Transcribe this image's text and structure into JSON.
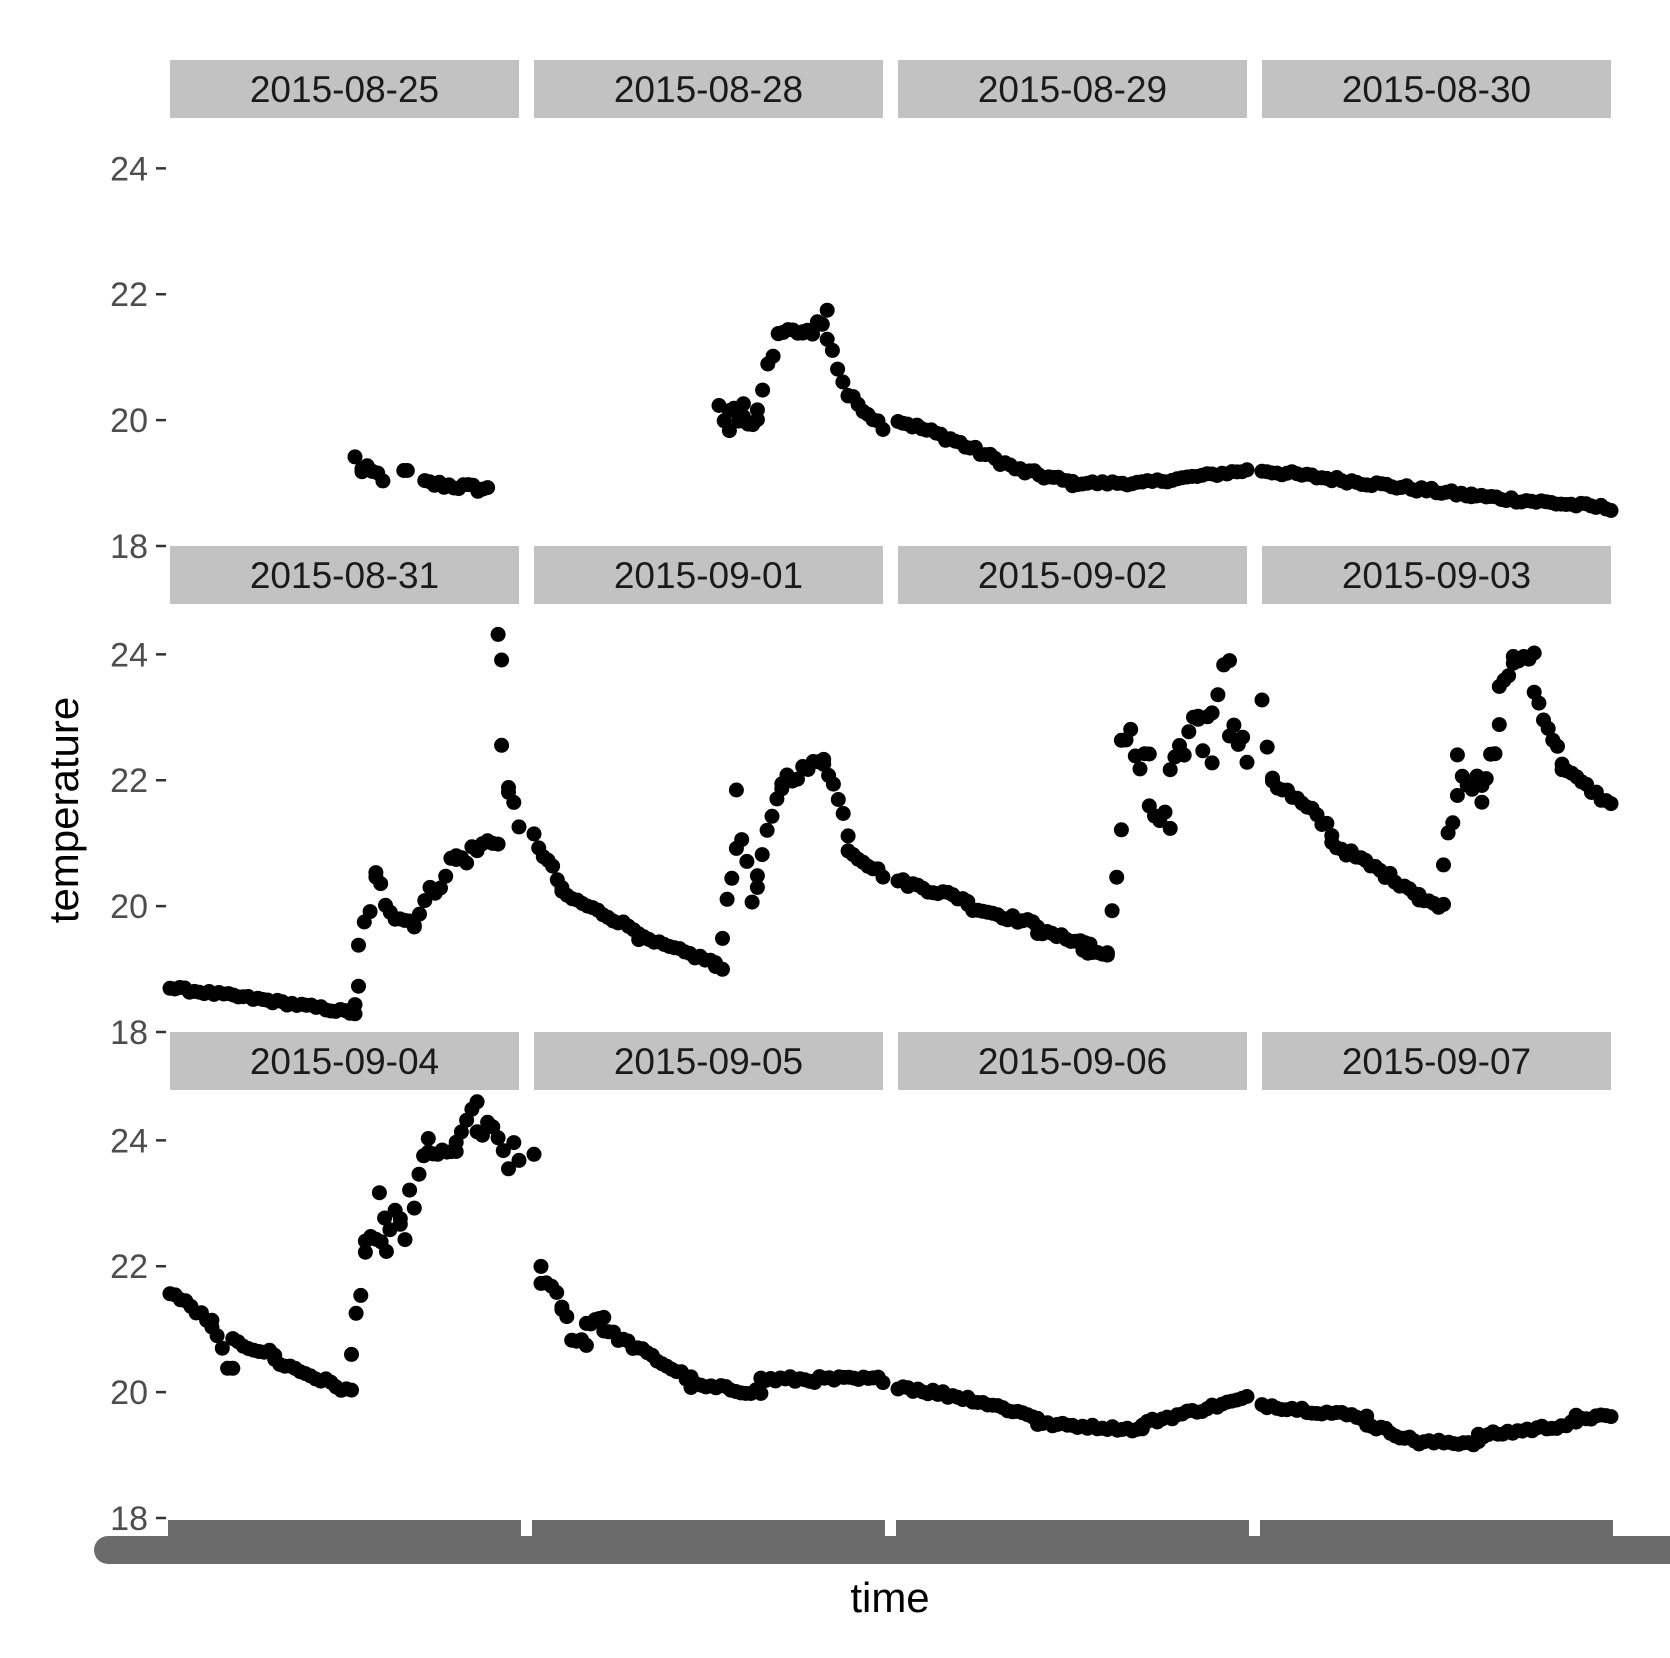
{
  "chart_data": {
    "type": "scatter",
    "facet_layout": {
      "ncol": 4,
      "nrow": 3
    },
    "xlabel": "time",
    "ylabel": "temperature",
    "ylim": [
      18,
      24.8
    ],
    "y_ticks": [
      18,
      20,
      22,
      24
    ],
    "grid": false,
    "colors": {
      "points": "#000000",
      "strip_background": "#c2c2c2",
      "strip_text": "#1a1a1a",
      "tick_label": "#4d4d4d",
      "axis_tick": "#333333",
      "overplotted_x_labels": "#6b6b6b"
    },
    "note_x_axis": "x tick labels are overplotted and unreadable (rendered as solid grey bars)",
    "panels": [
      {
        "label": "2015-08-25",
        "segments": [
          {
            "x0": 0.53,
            "x1": 0.55,
            "y0": 19.4,
            "y1": 19.2,
            "cluster": 0.05
          },
          {
            "x0": 0.55,
            "x1": 0.61,
            "y0": 19.2,
            "y1": 19.1,
            "cluster": 0.1
          },
          {
            "x0": 0.67,
            "x1": 0.68,
            "y0": 19.2,
            "y1": 19.2,
            "cluster": 0.0
          },
          {
            "x0": 0.73,
            "x1": 0.91,
            "y0": 19.0,
            "y1": 18.9,
            "cluster": 0.06
          }
        ]
      },
      {
        "label": "2015-08-28",
        "segments": [
          {
            "x0": 0.53,
            "x1": 0.56,
            "y0": 20.3,
            "y1": 19.9,
            "cluster": 0.25
          },
          {
            "x0": 0.56,
            "x1": 0.6,
            "y0": 19.9,
            "y1": 20.1,
            "cluster": 0.3
          },
          {
            "x0": 0.6,
            "x1": 0.64,
            "y0": 20.1,
            "y1": 20.1,
            "cluster": 0.25
          },
          {
            "x0": 0.64,
            "x1": 0.7,
            "y0": 20.2,
            "y1": 21.3,
            "cluster": 0.15
          },
          {
            "x0": 0.7,
            "x1": 0.77,
            "y0": 21.4,
            "y1": 21.4,
            "cluster": 0.05
          },
          {
            "x0": 0.77,
            "x1": 0.84,
            "y0": 21.3,
            "y1": 21.7,
            "cluster": 0.12
          },
          {
            "x0": 0.84,
            "x1": 0.9,
            "y0": 21.3,
            "y1": 20.4,
            "cluster": 0.08
          },
          {
            "x0": 0.9,
            "x1": 1.0,
            "y0": 20.4,
            "y1": 19.9,
            "cluster": 0.05
          }
        ]
      },
      {
        "label": "2015-08-29",
        "segments": [
          {
            "x0": 0.0,
            "x1": 0.15,
            "y0": 20.0,
            "y1": 19.7,
            "cluster": 0.05
          },
          {
            "x0": 0.15,
            "x1": 0.35,
            "y0": 19.7,
            "y1": 19.2,
            "cluster": 0.05
          },
          {
            "x0": 0.35,
            "x1": 0.5,
            "y0": 19.2,
            "y1": 19.0,
            "cluster": 0.05
          },
          {
            "x0": 0.5,
            "x1": 0.7,
            "y0": 19.0,
            "y1": 19.0,
            "cluster": 0.03
          },
          {
            "x0": 0.7,
            "x1": 1.0,
            "y0": 19.0,
            "y1": 19.2,
            "cluster": 0.03
          }
        ]
      },
      {
        "label": "2015-08-30",
        "segments": [
          {
            "x0": 0.0,
            "x1": 0.3,
            "y0": 19.2,
            "y1": 19.0,
            "cluster": 0.04
          },
          {
            "x0": 0.3,
            "x1": 0.6,
            "y0": 19.0,
            "y1": 18.8,
            "cluster": 0.04
          },
          {
            "x0": 0.6,
            "x1": 1.0,
            "y0": 18.8,
            "y1": 18.6,
            "cluster": 0.04
          }
        ]
      },
      {
        "label": "2015-08-31",
        "segments": [
          {
            "x0": 0.0,
            "x1": 0.28,
            "y0": 18.7,
            "y1": 18.5,
            "cluster": 0.03
          },
          {
            "x0": 0.28,
            "x1": 0.53,
            "y0": 18.5,
            "y1": 18.3,
            "cluster": 0.03
          },
          {
            "x0": 0.53,
            "x1": 0.54,
            "y0": 18.4,
            "y1": 18.7,
            "cluster": 0.05
          },
          {
            "x0": 0.54,
            "x1": 0.59,
            "y0": 19.3,
            "y1": 20.4,
            "cluster": 0.2
          },
          {
            "x0": 0.59,
            "x1": 0.7,
            "y0": 20.3,
            "y1": 19.7,
            "cluster": 0.25
          },
          {
            "x0": 0.7,
            "x1": 0.82,
            "y0": 19.8,
            "y1": 20.8,
            "cluster": 0.15
          },
          {
            "x0": 0.82,
            "x1": 0.94,
            "y0": 20.7,
            "y1": 21.1,
            "cluster": 0.15
          },
          {
            "x0": 0.94,
            "x1": 0.95,
            "y0": 24.3,
            "y1": 23.9,
            "cluster": 0.1
          },
          {
            "x0": 0.95,
            "x1": 0.97,
            "y0": 22.5,
            "y1": 21.9,
            "cluster": 0.1
          },
          {
            "x0": 0.97,
            "x1": 1.0,
            "y0": 21.9,
            "y1": 21.2,
            "cluster": 0.1
          }
        ]
      },
      {
        "label": "2015-09-01",
        "segments": [
          {
            "x0": 0.0,
            "x1": 0.08,
            "y0": 21.1,
            "y1": 20.3,
            "cluster": 0.08
          },
          {
            "x0": 0.08,
            "x1": 0.3,
            "y0": 20.2,
            "y1": 19.6,
            "cluster": 0.04
          },
          {
            "x0": 0.3,
            "x1": 0.52,
            "y0": 19.5,
            "y1": 19.1,
            "cluster": 0.04
          },
          {
            "x0": 0.52,
            "x1": 0.54,
            "y0": 19.0,
            "y1": 19.0,
            "cluster": 0.05
          },
          {
            "x0": 0.54,
            "x1": 0.58,
            "y0": 19.6,
            "y1": 21.0,
            "cluster": 0.12
          },
          {
            "x0": 0.58,
            "x1": 0.64,
            "y0": 21.5,
            "y1": 20.0,
            "cluster": 0.35
          },
          {
            "x0": 0.64,
            "x1": 0.71,
            "y0": 20.5,
            "y1": 21.9,
            "cluster": 0.15
          },
          {
            "x0": 0.71,
            "x1": 0.83,
            "y0": 22.0,
            "y1": 22.3,
            "cluster": 0.1
          },
          {
            "x0": 0.83,
            "x1": 0.9,
            "y0": 22.4,
            "y1": 21.2,
            "cluster": 0.1
          },
          {
            "x0": 0.9,
            "x1": 1.0,
            "y0": 20.9,
            "y1": 20.5,
            "cluster": 0.05
          }
        ]
      },
      {
        "label": "2015-09-02",
        "segments": [
          {
            "x0": 0.0,
            "x1": 0.2,
            "y0": 20.4,
            "y1": 20.1,
            "cluster": 0.05
          },
          {
            "x0": 0.2,
            "x1": 0.4,
            "y0": 20.0,
            "y1": 19.7,
            "cluster": 0.05
          },
          {
            "x0": 0.4,
            "x1": 0.55,
            "y0": 19.6,
            "y1": 19.4,
            "cluster": 0.04
          },
          {
            "x0": 0.55,
            "x1": 0.53,
            "y0": 19.3,
            "y1": 19.3,
            "cluster": 0.0
          },
          {
            "x0": 0.53,
            "x1": 0.6,
            "y0": 19.3,
            "y1": 19.2,
            "cluster": 0.03
          },
          {
            "x0": 0.6,
            "x1": 0.64,
            "y0": 19.3,
            "y1": 21.2,
            "cluster": 0.15
          },
          {
            "x0": 0.64,
            "x1": 0.72,
            "y0": 22.8,
            "y1": 22.0,
            "cluster": 0.45
          },
          {
            "x0": 0.72,
            "x1": 0.78,
            "y0": 21.6,
            "y1": 21.2,
            "cluster": 0.3
          },
          {
            "x0": 0.78,
            "x1": 0.86,
            "y0": 22.0,
            "y1": 23.1,
            "cluster": 0.2
          },
          {
            "x0": 0.86,
            "x1": 0.9,
            "y0": 23.0,
            "y1": 22.5,
            "cluster": 0.5
          },
          {
            "x0": 0.9,
            "x1": 0.95,
            "y0": 23.2,
            "y1": 24.0,
            "cluster": 0.15
          },
          {
            "x0": 0.95,
            "x1": 1.0,
            "y0": 22.9,
            "y1": 22.4,
            "cluster": 0.2
          }
        ]
      },
      {
        "label": "2015-09-03",
        "segments": [
          {
            "x0": 0.0,
            "x1": 0.03,
            "y0": 23.0,
            "y1": 22.2,
            "cluster": 0.3
          },
          {
            "x0": 0.03,
            "x1": 0.2,
            "y0": 22.0,
            "y1": 21.2,
            "cluster": 0.1
          },
          {
            "x0": 0.2,
            "x1": 0.45,
            "y0": 21.0,
            "y1": 20.2,
            "cluster": 0.06
          },
          {
            "x0": 0.45,
            "x1": 0.52,
            "y0": 20.1,
            "y1": 20.0,
            "cluster": 0.04
          },
          {
            "x0": 0.52,
            "x1": 0.56,
            "y0": 20.8,
            "y1": 21.8,
            "cluster": 0.15
          },
          {
            "x0": 0.56,
            "x1": 0.63,
            "y0": 22.5,
            "y1": 21.6,
            "cluster": 0.3
          },
          {
            "x0": 0.63,
            "x1": 0.68,
            "y0": 21.8,
            "y1": 22.8,
            "cluster": 0.15
          },
          {
            "x0": 0.68,
            "x1": 0.72,
            "y0": 23.5,
            "y1": 23.8,
            "cluster": 0.1
          },
          {
            "x0": 0.72,
            "x1": 0.78,
            "y0": 23.9,
            "y1": 24.0,
            "cluster": 0.08
          },
          {
            "x0": 0.78,
            "x1": 0.86,
            "y0": 23.4,
            "y1": 22.3,
            "cluster": 0.08
          },
          {
            "x0": 0.86,
            "x1": 1.0,
            "y0": 22.2,
            "y1": 21.6,
            "cluster": 0.05
          }
        ]
      },
      {
        "label": "2015-09-04",
        "segments": [
          {
            "x0": 0.0,
            "x1": 0.12,
            "y0": 21.6,
            "y1": 21.1,
            "cluster": 0.05
          },
          {
            "x0": 0.12,
            "x1": 0.18,
            "y0": 21.0,
            "y1": 20.3,
            "cluster": 0.1
          },
          {
            "x0": 0.18,
            "x1": 0.3,
            "y0": 20.8,
            "y1": 20.6,
            "cluster": 0.05
          },
          {
            "x0": 0.3,
            "x1": 0.52,
            "y0": 20.5,
            "y1": 20.0,
            "cluster": 0.05
          },
          {
            "x0": 0.52,
            "x1": 0.56,
            "y0": 20.6,
            "y1": 22.3,
            "cluster": 0.2
          },
          {
            "x0": 0.56,
            "x1": 0.62,
            "y0": 22.4,
            "y1": 22.3,
            "cluster": 0.1
          },
          {
            "x0": 0.6,
            "x1": 0.66,
            "y0": 23.0,
            "y1": 22.2,
            "cluster": 0.5
          },
          {
            "x0": 0.66,
            "x1": 0.74,
            "y0": 22.5,
            "y1": 23.8,
            "cluster": 0.3
          },
          {
            "x0": 0.74,
            "x1": 0.82,
            "y0": 23.8,
            "y1": 23.8,
            "cluster": 0.05
          },
          {
            "x0": 0.82,
            "x1": 0.88,
            "y0": 24.0,
            "y1": 24.6,
            "cluster": 0.05
          },
          {
            "x0": 0.88,
            "x1": 1.0,
            "y0": 24.2,
            "y1": 23.6,
            "cluster": 0.3
          }
        ]
      },
      {
        "label": "2015-09-05",
        "segments": [
          {
            "x0": 0.0,
            "x1": 0.02,
            "y0": 23.8,
            "y1": 22.0,
            "cluster": 0.3
          },
          {
            "x0": 0.02,
            "x1": 0.08,
            "y0": 21.8,
            "y1": 21.4,
            "cluster": 0.1
          },
          {
            "x0": 0.08,
            "x1": 0.15,
            "y0": 21.2,
            "y1": 20.7,
            "cluster": 0.2
          },
          {
            "x0": 0.15,
            "x1": 0.2,
            "y0": 21.1,
            "y1": 21.2,
            "cluster": 0.05
          },
          {
            "x0": 0.2,
            "x1": 0.45,
            "y0": 21.0,
            "y1": 20.2,
            "cluster": 0.05
          },
          {
            "x0": 0.45,
            "x1": 0.65,
            "y0": 20.1,
            "y1": 20.0,
            "cluster": 0.05
          },
          {
            "x0": 0.65,
            "x1": 1.0,
            "y0": 20.2,
            "y1": 20.2,
            "cluster": 0.05
          }
        ]
      },
      {
        "label": "2015-09-06",
        "segments": [
          {
            "x0": 0.0,
            "x1": 0.2,
            "y0": 20.1,
            "y1": 19.9,
            "cluster": 0.05
          },
          {
            "x0": 0.2,
            "x1": 0.4,
            "y0": 19.9,
            "y1": 19.6,
            "cluster": 0.04
          },
          {
            "x0": 0.4,
            "x1": 0.7,
            "y0": 19.5,
            "y1": 19.4,
            "cluster": 0.03
          },
          {
            "x0": 0.7,
            "x1": 1.0,
            "y0": 19.5,
            "y1": 19.9,
            "cluster": 0.04
          }
        ]
      },
      {
        "label": "2015-09-07",
        "segments": [
          {
            "x0": 0.0,
            "x1": 0.3,
            "y0": 19.8,
            "y1": 19.6,
            "cluster": 0.04
          },
          {
            "x0": 0.3,
            "x1": 0.45,
            "y0": 19.5,
            "y1": 19.2,
            "cluster": 0.04
          },
          {
            "x0": 0.45,
            "x1": 0.62,
            "y0": 19.2,
            "y1": 19.2,
            "cluster": 0.04
          },
          {
            "x0": 0.62,
            "x1": 0.9,
            "y0": 19.3,
            "y1": 19.5,
            "cluster": 0.04
          },
          {
            "x0": 0.9,
            "x1": 1.0,
            "y0": 19.6,
            "y1": 19.6,
            "cluster": 0.04
          }
        ]
      }
    ]
  }
}
